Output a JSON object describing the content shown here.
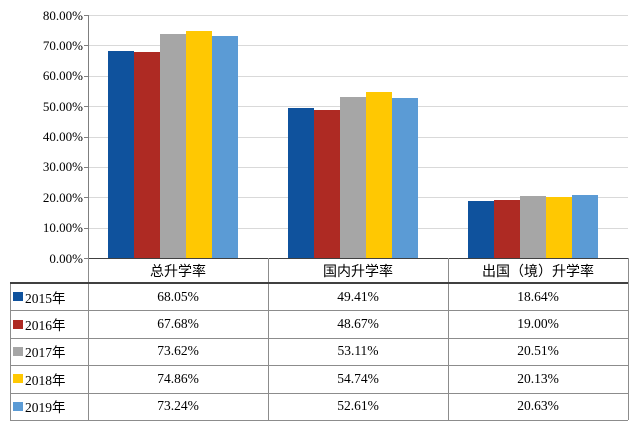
{
  "chart_data": {
    "type": "bar",
    "title": "",
    "xlabel": "",
    "ylabel": "",
    "grid": "horizontal",
    "legend_position": "data-table-left-column",
    "data_table_shown": true,
    "ylim": [
      0,
      80
    ],
    "ytick_step": 10,
    "ytick_labels": [
      "80.00%",
      "70.00%",
      "60.00%",
      "50.00%",
      "40.00%",
      "30.00%",
      "20.00%",
      "10.00%",
      "0.00%"
    ],
    "categories": [
      "总升学率",
      "国内升学率",
      "出国（境）升学率"
    ],
    "series": [
      {
        "name": "2015年",
        "color": "#0f529d",
        "values": [
          68.05,
          49.41,
          18.64
        ],
        "display_values": [
          "68.05%",
          "49.41%",
          "18.64%"
        ]
      },
      {
        "name": "2016年",
        "color": "#ae2a23",
        "values": [
          67.68,
          48.67,
          19.0
        ],
        "display_values": [
          "67.68%",
          "48.67%",
          "19.00%"
        ]
      },
      {
        "name": "2017年",
        "color": "#a6a6a6",
        "values": [
          73.62,
          53.11,
          20.51
        ],
        "display_values": [
          "73.62%",
          "53.11%",
          "20.51%"
        ]
      },
      {
        "name": "2018年",
        "color": "#ffc802",
        "values": [
          74.86,
          54.74,
          20.13
        ],
        "display_values": [
          "74.86%",
          "54.74%",
          "20.13%"
        ]
      },
      {
        "name": "2019年",
        "color": "#5b9bd5",
        "values": [
          73.24,
          52.61,
          20.63
        ],
        "display_values": [
          "73.24%",
          "52.61%",
          "20.63%"
        ]
      }
    ],
    "colors": {
      "plot_gridline": "#d9d9d9",
      "axis_line": "#7f7f7f",
      "baseline": "#404040",
      "table_line": "#8c8c8c",
      "table_header_rule": "#404040",
      "background": "#ffffff",
      "text": "#000000"
    }
  }
}
